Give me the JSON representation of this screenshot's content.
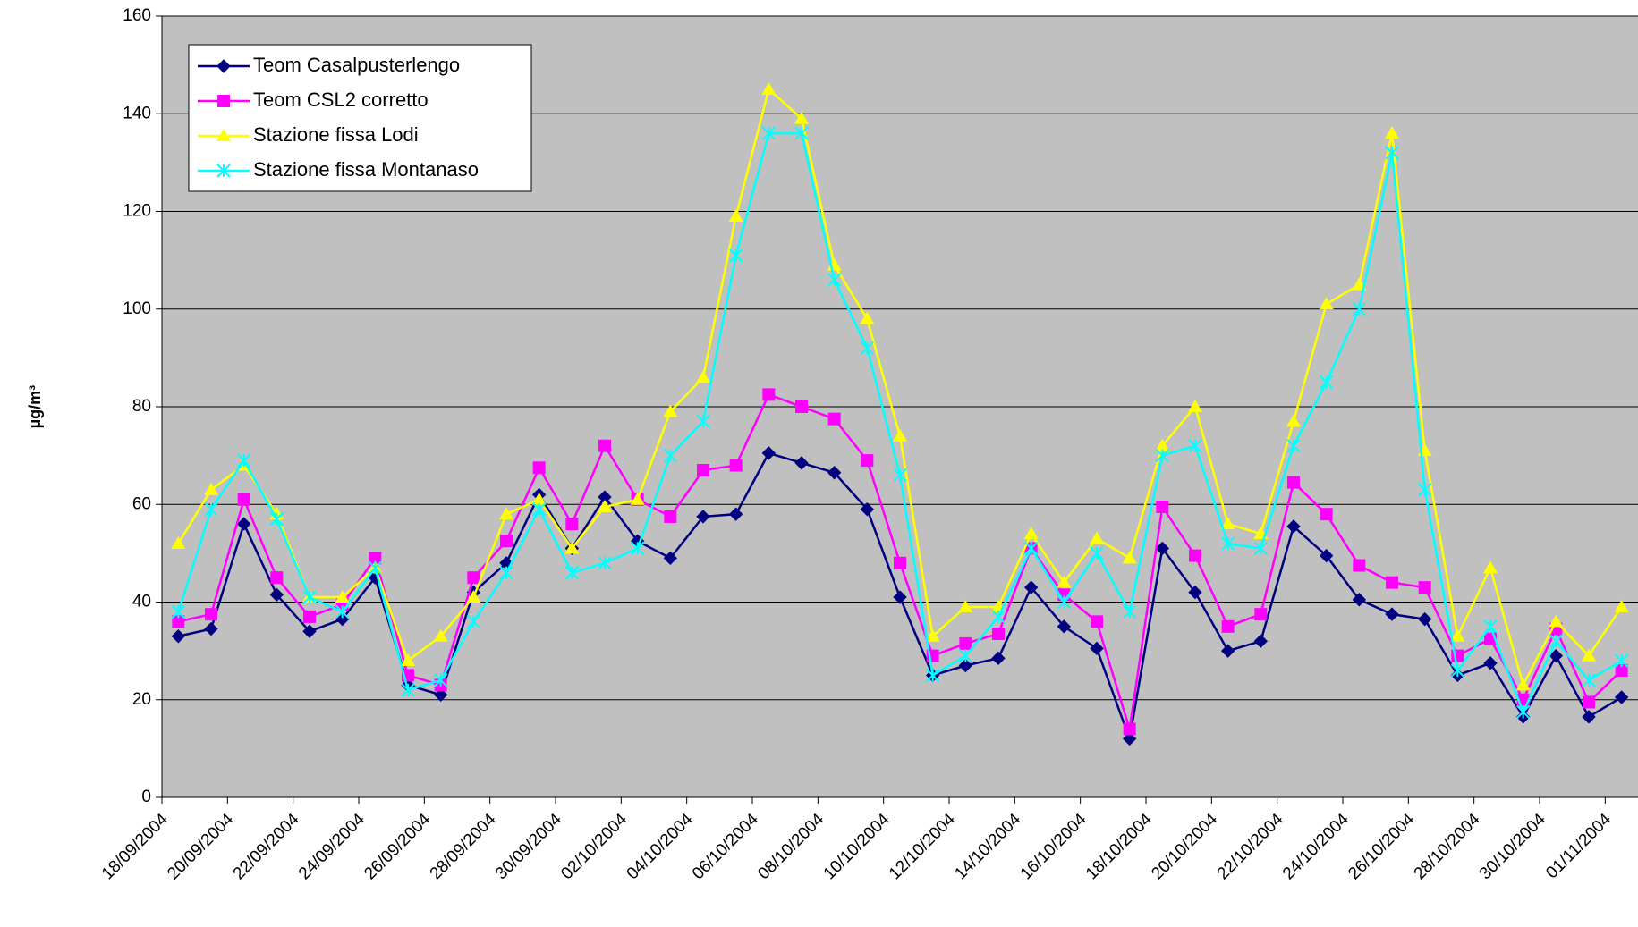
{
  "chart_data": {
    "type": "line",
    "y_label": "µg/m³",
    "categories": [
      "18/09/2004",
      null,
      "20/09/2004",
      null,
      "22/09/2004",
      null,
      "24/09/2004",
      null,
      "26/09/2004",
      null,
      "28/09/2004",
      null,
      "30/09/2004",
      null,
      "02/10/2004",
      null,
      "04/10/2004",
      null,
      "06/10/2004",
      null,
      "08/10/2004",
      null,
      "10/10/2004",
      null,
      "12/10/2004",
      null,
      "14/10/2004",
      null,
      "16/10/2004",
      null,
      "18/10/2004",
      null,
      "20/10/2004",
      null,
      "22/10/2004",
      null,
      "24/10/2004",
      null,
      "26/10/2004",
      null,
      "28/10/2004",
      null,
      "30/10/2004",
      null,
      "01/11/2004"
    ],
    "series": [
      {
        "name": "Teom Casalpusterlengo",
        "color": "#000080",
        "marker": "diamond",
        "values": [
          33,
          34.5,
          56,
          41.5,
          34,
          36.5,
          45,
          23,
          21,
          42,
          48,
          62,
          51,
          61.5,
          52.5,
          49,
          57.5,
          58,
          70.5,
          68.5,
          66.5,
          59,
          41,
          25,
          27,
          28.5,
          43,
          35,
          30.5,
          12,
          51,
          42,
          30,
          32,
          55.5,
          49.5,
          40.5,
          37.5,
          36.5,
          25,
          27.5,
          16.5,
          29,
          16.5,
          20.5
        ]
      },
      {
        "name": "Teom CSL2 corretto",
        "color": "#ff00ff",
        "marker": "square",
        "values": [
          36,
          37.5,
          61,
          45,
          37,
          39.5,
          49,
          25,
          23,
          45,
          52.5,
          67.5,
          56,
          72,
          61,
          57.5,
          67,
          68,
          82.5,
          80,
          77.5,
          69,
          48,
          29,
          31.5,
          33.5,
          51,
          41.5,
          36,
          14,
          59.5,
          49.5,
          35,
          37.5,
          64.5,
          58,
          47.5,
          44,
          43,
          29,
          32.5,
          20,
          34.5,
          19.5,
          26
        ]
      },
      {
        "name": "Stazione fissa Lodi",
        "color": "#ffff00",
        "marker": "triangle",
        "values": [
          52,
          63,
          68,
          58,
          41,
          41,
          47,
          28,
          33,
          41,
          58,
          61,
          51,
          59.5,
          61,
          79,
          86,
          119,
          145,
          139,
          109,
          98,
          74,
          33,
          39,
          39,
          54,
          44,
          53,
          49,
          72,
          80,
          56,
          54,
          77,
          101,
          105,
          136,
          71,
          33,
          47,
          23,
          36,
          29,
          39
        ]
      },
      {
        "name": "Stazione fissa Montanaso",
        "color": "#00ffff",
        "marker": "star",
        "values": [
          38,
          59,
          69,
          57,
          41,
          38,
          47,
          22,
          24,
          36,
          46,
          59,
          46,
          48,
          51,
          70,
          77,
          111,
          136,
          136,
          106,
          92,
          66,
          25,
          29,
          37,
          51,
          40,
          50,
          38,
          70,
          72,
          52,
          51,
          72,
          85,
          100,
          132,
          63,
          26,
          35,
          17.5,
          32,
          24,
          28
        ]
      }
    ],
    "ylim": [
      0,
      160
    ],
    "yticks": [
      0,
      20,
      40,
      60,
      80,
      100,
      120,
      140,
      160
    ],
    "grid": true,
    "plot_background": "#c0c0c0",
    "legend": "upper-left"
  }
}
